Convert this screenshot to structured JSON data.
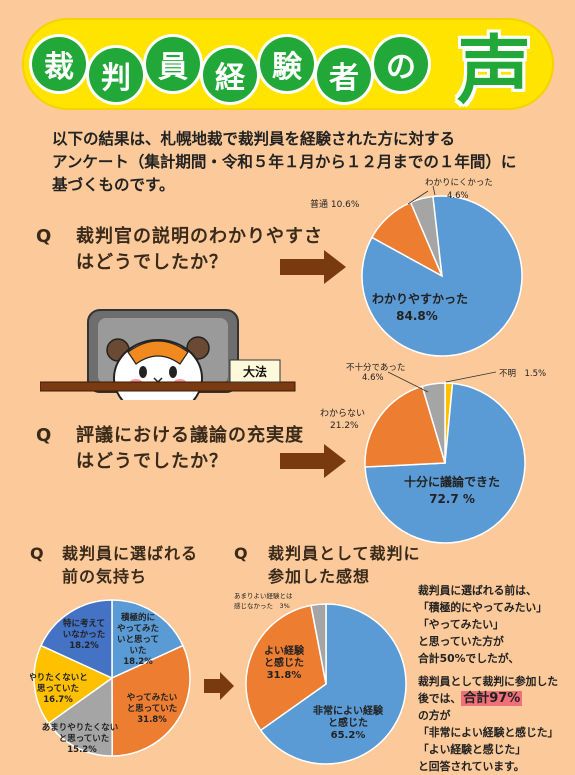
{
  "title": {
    "chars": [
      "裁",
      "判",
      "員",
      "経",
      "験",
      "者",
      "の"
    ],
    "big_char": "声",
    "colors": {
      "circle": "#22a838",
      "banner": "#ffe400"
    }
  },
  "intro": {
    "line1": "以下の結果は、札幌地裁で裁判員を経験された方に対する",
    "line2": "アンケート（集計期間・令和５年１月から１２月までの１年間）に",
    "line3": "基づくものです。"
  },
  "q1": {
    "mark": "Q",
    "line1": "裁判官の説明のわかりやすさ",
    "line2": "はどうでしたか？",
    "labels": {
      "a_name": "わかりやすかった",
      "a_pct": "84.8%",
      "b": "普通 10.6%",
      "c_name": "わかりにくかった",
      "c_pct": "4.6%"
    }
  },
  "q2": {
    "mark": "Q",
    "line1": "評議における議論の充実度",
    "line2": "はどうでしたか？",
    "labels": {
      "a_name": "十分に議論できた",
      "a_pct": "72.7 %",
      "b_name": "わからない",
      "b_pct": "21.2%",
      "c_name": "不十分であった",
      "c_pct": "4.6%",
      "d": "不明　1.5%"
    }
  },
  "sign": "大法",
  "q3": {
    "mark": "Q",
    "line1": "裁判員に選ばれる",
    "line2": "前の気持ち",
    "labels": {
      "a": [
        "積極的に",
        "やってみた",
        "いと思って",
        "いた",
        "18.2%"
      ],
      "b": [
        "やってみたい",
        "と思っていた",
        "31.8%"
      ],
      "c": [
        "あまりやりたくない",
        "と思っていた",
        "15.2%"
      ],
      "d": [
        "やりたくないと",
        "思っていた",
        "16.7%"
      ],
      "e": [
        "特に考えて",
        "いなかった",
        "18.2%"
      ]
    }
  },
  "q4": {
    "mark": "Q",
    "line1": "裁判員として裁判に",
    "line2": "参加した感想",
    "labels": {
      "a": [
        "非常によい経験",
        "と感じた",
        "65.2%"
      ],
      "b": [
        "よい経験",
        "と感じた",
        "31.8%"
      ],
      "c": [
        "あまりよい経験とは",
        "感じなかった　3%"
      ]
    }
  },
  "summary": {
    "l1": "裁判員に選ばれる前は、",
    "l2": "「積極的にやってみたい」",
    "l3": "「やってみたい」",
    "l4": "と思っていた方が",
    "l5": "合計50%でしたが、",
    "l6": "裁判員として裁判に参加した",
    "l7a": "後では、",
    "l7b": "合計97%",
    "l8": "の方が",
    "l9": "「非常によい経験と感じた」",
    "l10": "「よい経験と感じた」",
    "l11": "と回答されています。"
  },
  "chart_data": [
    {
      "type": "pie",
      "slices": [
        {
          "label": "わかりやすかった",
          "value": 84.8,
          "color": "#5b9bd5"
        },
        {
          "label": "普通",
          "value": 10.6,
          "color": "#ed7d31"
        },
        {
          "label": "わかりにくかった",
          "value": 4.6,
          "color": "#a5a5a5"
        }
      ]
    },
    {
      "type": "pie",
      "slices": [
        {
          "label": "十分に議論できた",
          "value": 72.7,
          "color": "#5b9bd5"
        },
        {
          "label": "わからない",
          "value": 21.2,
          "color": "#ed7d31"
        },
        {
          "label": "不十分であった",
          "value": 4.6,
          "color": "#a5a5a5"
        },
        {
          "label": "不明",
          "value": 1.5,
          "color": "#ffc000"
        }
      ]
    },
    {
      "type": "pie",
      "slices": [
        {
          "label": "積極的にやってみたいと思っていた",
          "value": 18.2,
          "color": "#5b9bd5"
        },
        {
          "label": "やってみたいと思っていた",
          "value": 31.8,
          "color": "#ed7d31"
        },
        {
          "label": "あまりやりたくないと思っていた",
          "value": 15.2,
          "color": "#a5a5a5"
        },
        {
          "label": "やりたくないと思っていた",
          "value": 16.7,
          "color": "#ffc000"
        },
        {
          "label": "特に考えていなかった",
          "value": 18.2,
          "color": "#4472c4"
        }
      ]
    },
    {
      "type": "pie",
      "slices": [
        {
          "label": "非常によい経験と感じた",
          "value": 65.2,
          "color": "#5b9bd5"
        },
        {
          "label": "よい経験と感じた",
          "value": 31.8,
          "color": "#ed7d31"
        },
        {
          "label": "あまりよい経験とは感じなかった",
          "value": 3,
          "color": "#a5a5a5"
        }
      ]
    }
  ]
}
